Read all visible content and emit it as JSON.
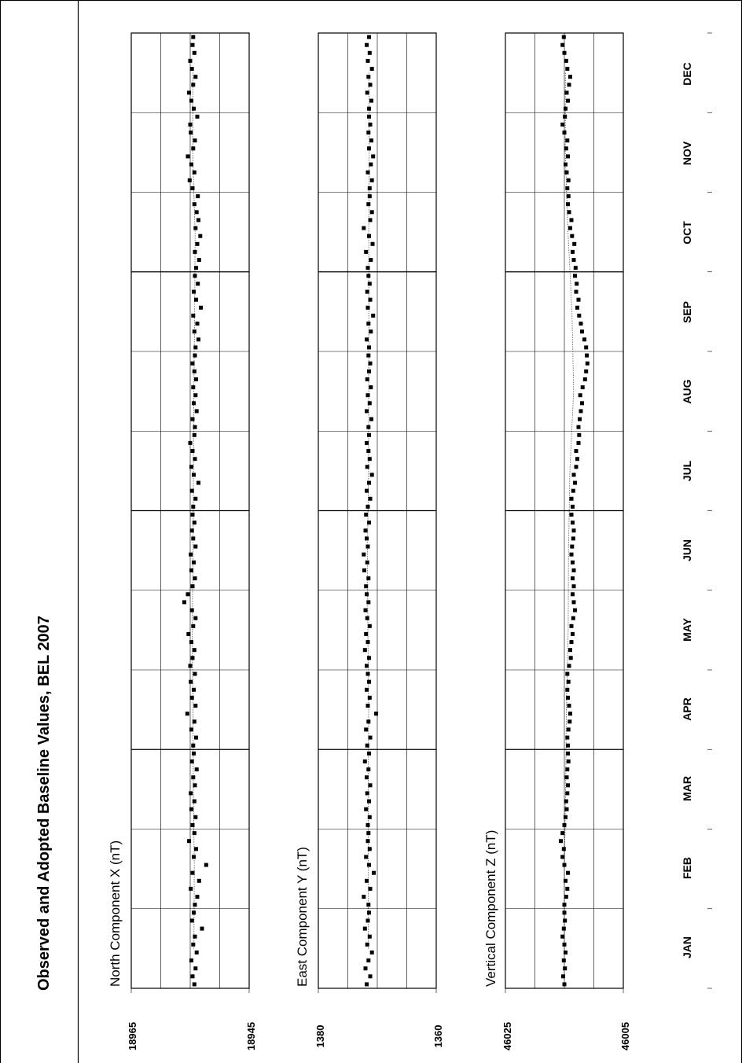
{
  "title": "Observed and Adopted Baseline Values, BEL 2007",
  "months": [
    "JAN",
    "FEB",
    "MAR",
    "APR",
    "MAY",
    "JUN",
    "JUL",
    "AUG",
    "SEP",
    "OCT",
    "NOV",
    "DEC"
  ],
  "chart_data": [
    {
      "type": "scatter",
      "title": "North Component X (nT)",
      "ylim": [
        18965,
        18945
      ],
      "y_tick_labels": [
        "18965",
        "18945"
      ],
      "baseline": 18954.5,
      "spread": 0.6,
      "series": [
        {
          "month": "JAN",
          "values": [
            18954.3,
            18954.6,
            18954.1,
            18954.8,
            18953.9,
            18954.5,
            18954.2,
            18953.0,
            18954.7,
            18954.4
          ]
        },
        {
          "month": "FEB",
          "values": [
            18954.2,
            18953.8,
            18954.9,
            18953.5,
            18954.6,
            18952.3,
            18954.4,
            18954.0,
            18955.2,
            18954.3
          ]
        },
        {
          "month": "MAR",
          "values": [
            18954.6,
            18954.1,
            18954.8,
            18954.3,
            18954.9,
            18954.2,
            18954.5,
            18953.9,
            18954.7,
            18954.4
          ]
        },
        {
          "month": "APR",
          "values": [
            18954.5,
            18954.0,
            18954.8,
            18954.3,
            18955.5,
            18954.1,
            18954.7,
            18954.4,
            18954.9,
            18954.2
          ]
        },
        {
          "month": "MAY",
          "values": [
            18955.0,
            18954.6,
            18954.3,
            18954.8,
            18955.3,
            18954.5,
            18954.1,
            18954.7,
            18956.0,
            18955.4
          ]
        },
        {
          "month": "JUN",
          "values": [
            18954.6,
            18954.2,
            18954.8,
            18954.4,
            18954.9,
            18954.1,
            18954.5,
            18954.7,
            18954.3,
            18954.6
          ]
        },
        {
          "month": "JUL",
          "values": [
            18954.5,
            18954.1,
            18954.7,
            18953.6,
            18954.4,
            18954.8,
            18954.2,
            18954.6,
            18955.0,
            18954.3
          ]
        },
        {
          "month": "AUG",
          "values": [
            18954.2,
            18954.6,
            18953.9,
            18954.4,
            18954.1,
            18954.5,
            18954.0,
            18954.3,
            18954.6,
            18954.2
          ]
        },
        {
          "month": "SEP",
          "values": [
            18954.1,
            18953.6,
            18954.3,
            18953.8,
            18954.5,
            18953.2,
            18954.0,
            18954.4,
            18953.7,
            18954.2
          ]
        },
        {
          "month": "OCT",
          "values": [
            18954.0,
            18953.5,
            18954.2,
            18953.8,
            18953.3,
            18954.1,
            18953.6,
            18953.9,
            18954.3,
            18953.7
          ]
        },
        {
          "month": "NOV",
          "values": [
            18954.6,
            18955.1,
            18954.3,
            18954.8,
            18955.4,
            18954.5,
            18954.2,
            18954.9,
            18955.0,
            18953.8
          ]
        },
        {
          "month": "DEC",
          "values": [
            18954.4,
            18954.8,
            18955.2,
            18954.5,
            18954.1,
            18954.7,
            18955.0,
            18954.3,
            18954.6,
            18954.5
          ]
        }
      ]
    },
    {
      "type": "scatter",
      "title": "East Component Y (nT)",
      "ylim": [
        1380,
        1360
      ],
      "y_tick_labels": [
        "1380",
        "1360"
      ],
      "baseline": 1371.5,
      "spread": 0.5,
      "series": [
        {
          "month": "JAN",
          "values": [
            1371.8,
            1371.2,
            1372.0,
            1371.5,
            1370.9,
            1371.7,
            1371.3,
            1372.1,
            1371.6,
            1371.4
          ]
        },
        {
          "month": "FEB",
          "values": [
            1371.5,
            1372.3,
            1371.2,
            1371.8,
            1370.6,
            1371.4,
            1371.9,
            1371.3,
            1371.6,
            1371.5
          ]
        },
        {
          "month": "MAR",
          "values": [
            1371.6,
            1371.3,
            1371.9,
            1371.4,
            1371.7,
            1371.2,
            1371.8,
            1371.5,
            1372.1,
            1371.4
          ]
        },
        {
          "month": "APR",
          "values": [
            1371.7,
            1371.2,
            1371.9,
            1371.5,
            1370.2,
            1371.6,
            1371.3,
            1371.8,
            1371.4,
            1371.6
          ]
        },
        {
          "month": "MAY",
          "values": [
            1371.8,
            1371.4,
            1372.1,
            1371.6,
            1371.9,
            1371.3,
            1371.7,
            1372.0,
            1371.5,
            1371.8
          ]
        },
        {
          "month": "JUN",
          "values": [
            1371.9,
            1371.5,
            1372.2,
            1371.7,
            1372.3,
            1371.6,
            1371.8,
            1372.0,
            1371.4,
            1371.9
          ]
        },
        {
          "month": "JUL",
          "values": [
            1371.6,
            1371.2,
            1371.8,
            1371.4,
            1370.9,
            1371.7,
            1371.3,
            1371.5,
            1371.8,
            1371.4
          ]
        },
        {
          "month": "AUG",
          "values": [
            1371.5,
            1371.0,
            1371.8,
            1371.3,
            1371.6,
            1371.1,
            1371.7,
            1371.4,
            1371.2,
            1371.5
          ]
        },
        {
          "month": "SEP",
          "values": [
            1371.4,
            1371.8,
            1371.1,
            1371.5,
            1370.7,
            1371.6,
            1371.2,
            1371.7,
            1371.3,
            1371.5
          ]
        },
        {
          "month": "OCT",
          "values": [
            1371.6,
            1371.1,
            1371.9,
            1370.8,
            1371.4,
            1372.3,
            1371.2,
            1370.9,
            1371.5,
            1371.3
          ]
        },
        {
          "month": "NOV",
          "values": [
            1371.3,
            1370.9,
            1371.6,
            1371.1,
            1370.7,
            1371.4,
            1371.0,
            1371.5,
            1371.2,
            1371.4
          ]
        },
        {
          "month": "DEC",
          "values": [
            1371.4,
            1371.0,
            1371.7,
            1371.2,
            1371.5,
            1370.9,
            1371.6,
            1371.3,
            1371.8,
            1371.4
          ]
        }
      ]
    },
    {
      "type": "scatter",
      "title": "Vertical Component Z (nT)",
      "ylim": [
        46025,
        46005
      ],
      "y_tick_labels": [
        "46025",
        "46005"
      ],
      "baseline": 46015.0,
      "spread": 0.4,
      "series": [
        {
          "month": "JAN",
          "values": [
            46015.0,
            46015.2,
            46014.9,
            46015.1,
            46014.8,
            46015.0,
            46015.3,
            46015.1,
            46014.9,
            46015.0
          ]
        },
        {
          "month": "FEB",
          "values": [
            46015.0,
            46014.7,
            46014.5,
            46014.8,
            46014.4,
            46015.0,
            46015.3,
            46015.1,
            46015.6,
            46015.3
          ]
        },
        {
          "month": "MAR",
          "values": [
            46015.0,
            46014.8,
            46014.6,
            46014.7,
            46014.5,
            46014.4,
            46014.6,
            46014.5,
            46014.3,
            46014.4
          ]
        },
        {
          "month": "APR",
          "values": [
            46014.4,
            46014.5,
            46014.3,
            46014.1,
            46014.0,
            46014.2,
            46014.4,
            46014.5,
            46014.3,
            46014.5
          ]
        },
        {
          "month": "MAY",
          "values": [
            46014.2,
            46013.9,
            46014.0,
            46013.8,
            46013.6,
            46013.8,
            46013.5,
            46013.2,
            46013.4,
            46013.6
          ]
        },
        {
          "month": "JUN",
          "values": [
            46013.4,
            46013.6,
            46013.4,
            46013.6,
            46013.8,
            46013.7,
            46013.5,
            46013.4,
            46013.6,
            46013.8
          ]
        },
        {
          "month": "JUL",
          "values": [
            46013.6,
            46013.8,
            46013.5,
            46013.2,
            46013.4,
            46013.0,
            46012.8,
            46013.0,
            46012.6,
            46012.5
          ]
        },
        {
          "month": "AUG",
          "values": [
            46012.6,
            46012.4,
            46012.2,
            46012.0,
            46012.3,
            46011.9,
            46011.5,
            46011.3,
            46011.1,
            46011.2
          ]
        },
        {
          "month": "SEP",
          "values": [
            46011.3,
            46011.6,
            46012.0,
            46012.2,
            46012.5,
            46012.8,
            46012.6,
            46013.0,
            46012.9,
            46013.2
          ]
        },
        {
          "month": "OCT",
          "values": [
            46013.1,
            46013.4,
            46013.6,
            46013.3,
            46013.7,
            46014.0,
            46013.8,
            46014.2,
            46014.4,
            46014.3
          ]
        },
        {
          "month": "NOV",
          "values": [
            46014.5,
            46014.3,
            46014.6,
            46014.8,
            46014.4,
            46014.7,
            46014.5,
            46015.0,
            46015.3,
            46014.9
          ]
        },
        {
          "month": "DEC",
          "values": [
            46014.8,
            46014.4,
            46014.6,
            46014.2,
            46014.0,
            46014.5,
            46014.7,
            46015.0,
            46015.3,
            46015.1
          ]
        }
      ]
    }
  ]
}
